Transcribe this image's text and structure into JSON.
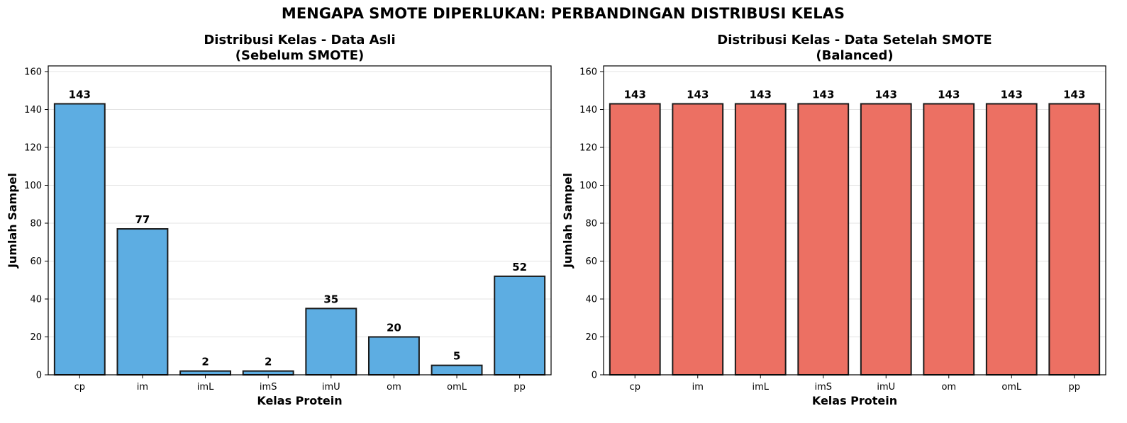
{
  "figure": {
    "suptitle": "MENGAPA SMOTE DIPERLUKAN: PERBANDINGAN DISTRIBUSI KELAS"
  },
  "chart_data": [
    {
      "type": "bar",
      "title_line1": "Distribusi Kelas - Data Asli",
      "title_line2": "(Sebelum SMOTE)",
      "xlabel": "Kelas Protein",
      "ylabel": "Jumlah Sampel",
      "categories": [
        "cp",
        "im",
        "imL",
        "imS",
        "imU",
        "om",
        "omL",
        "pp"
      ],
      "values": [
        143,
        77,
        2,
        2,
        35,
        20,
        5,
        52
      ],
      "data_labels": [
        "143",
        "77",
        "2",
        "2",
        "35",
        "20",
        "5",
        "52"
      ],
      "ylim": [
        0,
        163
      ],
      "yticks": [
        0,
        20,
        40,
        60,
        80,
        100,
        120,
        140,
        160
      ],
      "bar_color": "#5DADE2",
      "edge_color": "#1a1a1a",
      "grid": "horizontal"
    },
    {
      "type": "bar",
      "title_line1": "Distribusi Kelas - Data Setelah SMOTE",
      "title_line2": "(Balanced)",
      "xlabel": "Kelas Protein",
      "ylabel": "Jumlah Sampel",
      "categories": [
        "cp",
        "im",
        "imL",
        "imS",
        "imU",
        "om",
        "omL",
        "pp"
      ],
      "values": [
        143,
        143,
        143,
        143,
        143,
        143,
        143,
        143
      ],
      "data_labels": [
        "143",
        "143",
        "143",
        "143",
        "143",
        "143",
        "143",
        "143"
      ],
      "ylim": [
        0,
        163
      ],
      "yticks": [
        0,
        20,
        40,
        60,
        80,
        100,
        120,
        140,
        160
      ],
      "bar_color": "#EC7063",
      "edge_color": "#1a1a1a",
      "grid": "horizontal"
    }
  ]
}
